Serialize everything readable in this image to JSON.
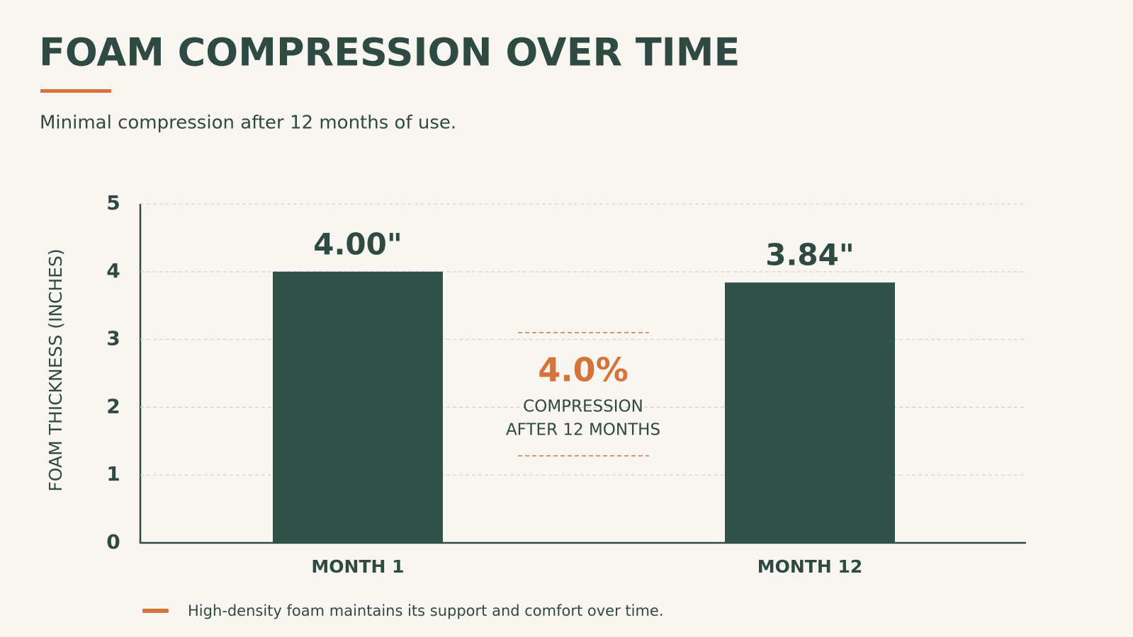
{
  "chart_data": {
    "type": "bar",
    "title": "FOAM COMPRESSION OVER TIME",
    "subtitle": "Minimal compression after 12 months of use.",
    "y_label": "FOAM THICKNESS (INCHES)",
    "categories": [
      "MONTH 1",
      "MONTH 12"
    ],
    "values": [
      4.0,
      3.84
    ],
    "value_labels": [
      "4.00\"",
      "3.84\""
    ],
    "color": "#2f5147",
    "accent_color": "#d4743a",
    "ylim": [
      0,
      5
    ],
    "yticks": [
      0,
      1,
      2,
      3,
      4,
      5
    ],
    "grid": true,
    "annotation": {
      "text": "4.0%",
      "lines": [
        "COMPRESSION",
        "AFTER 12 MONTHS"
      ]
    },
    "note": "High-density foam maintains its support and comfort over time."
  }
}
